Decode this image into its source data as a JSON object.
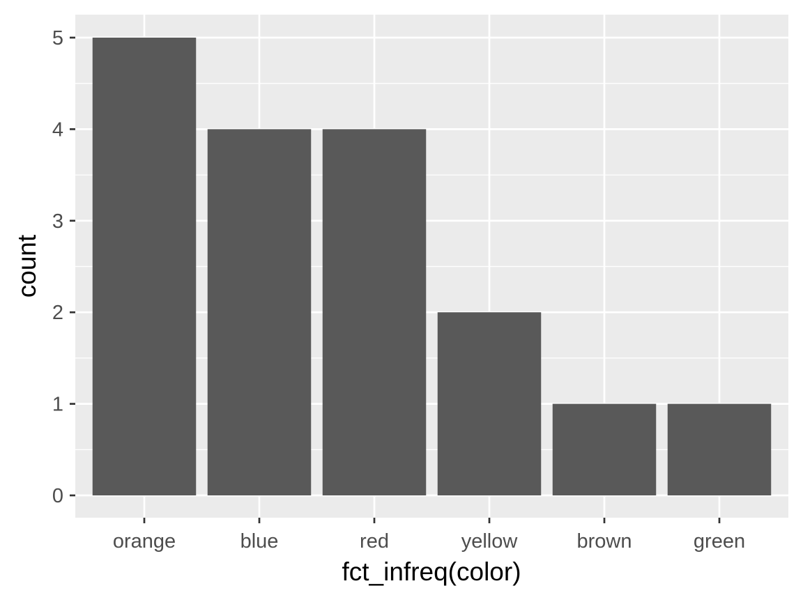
{
  "chart_data": {
    "type": "bar",
    "title": "",
    "xlabel": "fct_infreq(color)",
    "ylabel": "count",
    "categories": [
      "orange",
      "blue",
      "red",
      "yellow",
      "brown",
      "green"
    ],
    "values": [
      5,
      4,
      4,
      2,
      1,
      1
    ],
    "yticks": [
      "0",
      "1",
      "2",
      "3",
      "4",
      "5"
    ],
    "ylim": [
      0,
      5.25
    ],
    "grid": true,
    "legend": "none",
    "colors": {
      "bar": "#595959",
      "panel": "#ebebeb",
      "grid": "#ffffff",
      "tick": "#333333"
    }
  }
}
